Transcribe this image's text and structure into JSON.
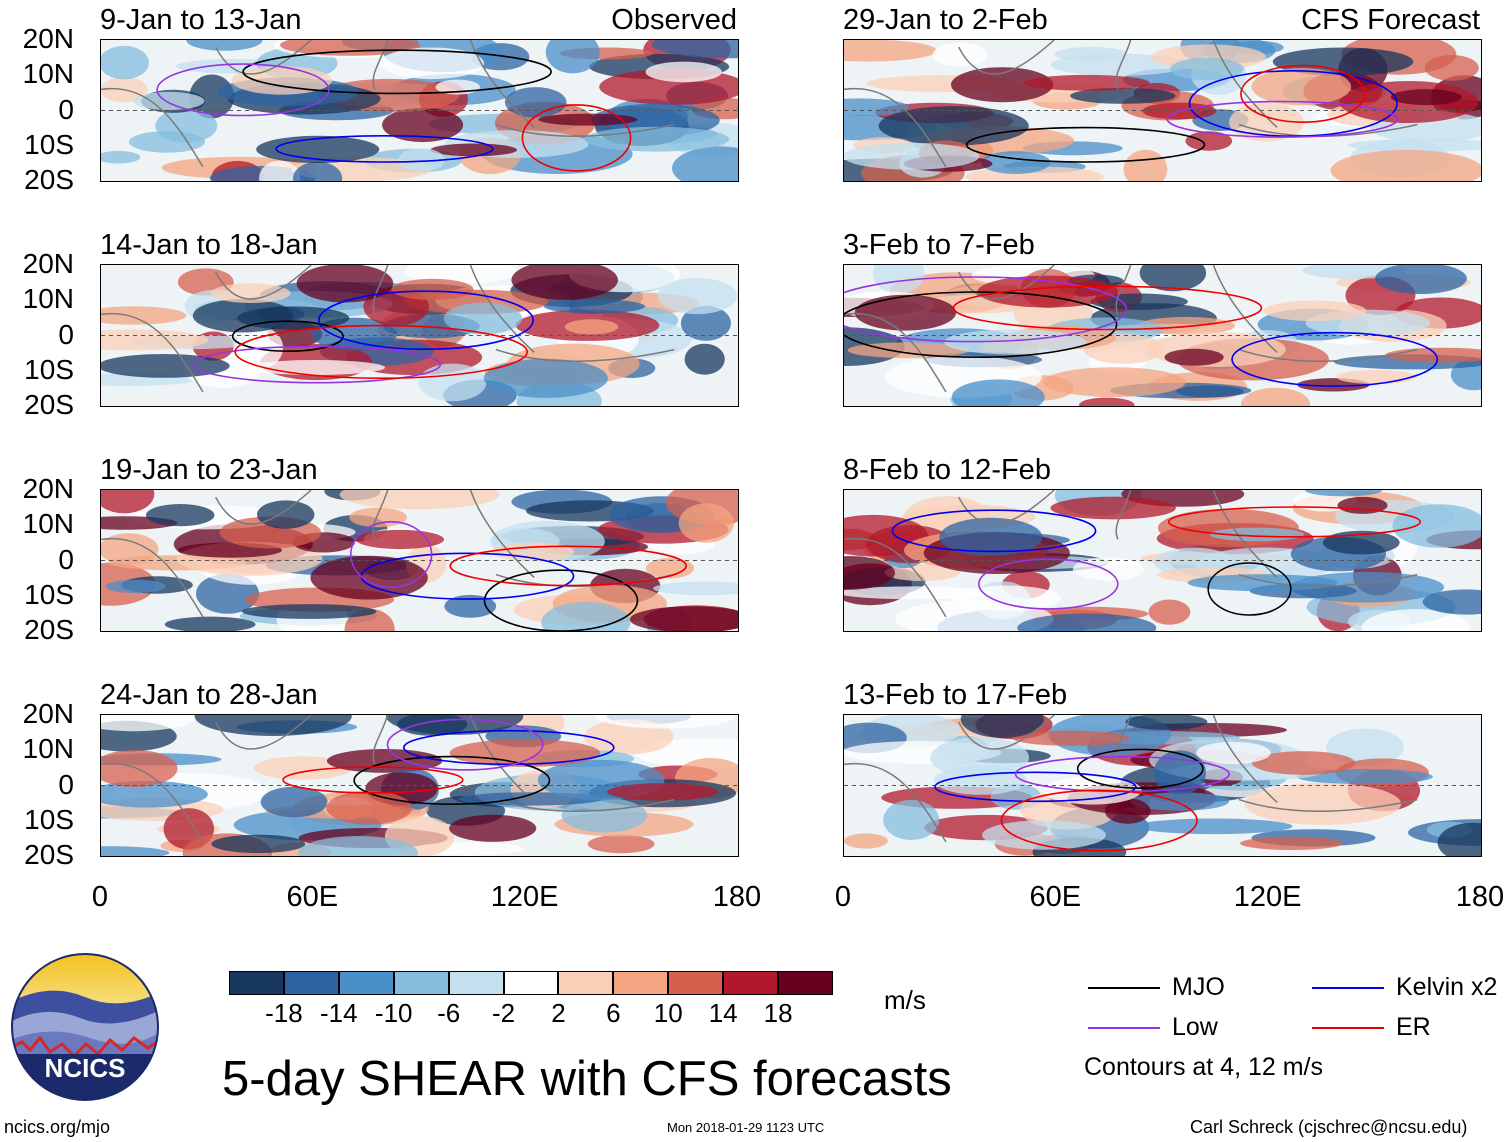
{
  "panels": [
    {
      "title": "9-Jan to 13-Jan",
      "tag": "Observed",
      "side": "left",
      "row": 0
    },
    {
      "title": "14-Jan to 18-Jan",
      "tag": "",
      "side": "left",
      "row": 1
    },
    {
      "title": "19-Jan to 23-Jan",
      "tag": "",
      "side": "left",
      "row": 2
    },
    {
      "title": "24-Jan to 28-Jan",
      "tag": "",
      "side": "left",
      "row": 3
    },
    {
      "title": "29-Jan to 2-Feb",
      "tag": "CFS Forecast",
      "side": "right",
      "row": 0
    },
    {
      "title": "3-Feb to 7-Feb",
      "tag": "",
      "side": "right",
      "row": 1
    },
    {
      "title": "8-Feb to 12-Feb",
      "tag": "",
      "side": "right",
      "row": 2
    },
    {
      "title": "13-Feb to 17-Feb",
      "tag": "",
      "side": "right",
      "row": 3
    }
  ],
  "axes": {
    "y_ticks": [
      "20N",
      "10N",
      "0",
      "10S",
      "20S"
    ],
    "x_ticks": [
      "0",
      "60E",
      "120E",
      "180"
    ]
  },
  "colorbar": {
    "labels": [
      "-18",
      "-14",
      "-10",
      "-6",
      "-2",
      "2",
      "6",
      "10",
      "14",
      "18"
    ],
    "colors": [
      "#17375e",
      "#2c64a3",
      "#4a8fc8",
      "#86bddd",
      "#c4e0ef",
      "#ffffff",
      "#fbd0b8",
      "#f4a582",
      "#d6604d",
      "#b2182b",
      "#67001f"
    ],
    "units": "m/s"
  },
  "title": "5-day SHEAR with CFS forecasts",
  "legend": {
    "items": [
      {
        "label": "MJO",
        "color": "#000000"
      },
      {
        "label": "Kelvin x2",
        "color": "#0000ee"
      },
      {
        "label": "Low",
        "color": "#9932e0"
      },
      {
        "label": "ER",
        "color": "#ee0000"
      }
    ],
    "note": "Contours at 4, 12 m/s"
  },
  "logo": {
    "text": "NCICS"
  },
  "footer": {
    "url": "ncics.org/mjo",
    "timestamp": "Mon 2018-01-29 1123 UTC",
    "credit": "Carl Schreck (cjschrec@ncsu.edu)"
  },
  "chart_data": {
    "type": "heatmap",
    "title": "5-day SHEAR with CFS forecasts",
    "variable": "wind shear anomaly",
    "units": "m/s",
    "domain": {
      "lon_range": [
        0,
        180
      ],
      "lat_range": [
        -20,
        20
      ]
    },
    "xlabel": "",
    "ylabel": "",
    "color_levels": [
      -18,
      -14,
      -10,
      -6,
      -2,
      2,
      6,
      10,
      14,
      18
    ],
    "contour_levels": [
      4,
      12
    ],
    "series": [
      {
        "name": "MJO",
        "color": "#000000"
      },
      {
        "name": "Kelvin x2",
        "color": "#0000ee"
      },
      {
        "name": "Low",
        "color": "#9932e0"
      },
      {
        "name": "ER",
        "color": "#ee0000"
      }
    ],
    "panels": [
      {
        "period": "9-Jan to 13-Jan",
        "source": "Observed"
      },
      {
        "period": "14-Jan to 18-Jan",
        "source": "Observed"
      },
      {
        "period": "19-Jan to 23-Jan",
        "source": "Observed"
      },
      {
        "period": "24-Jan to 28-Jan",
        "source": "Observed"
      },
      {
        "period": "29-Jan to 2-Feb",
        "source": "CFS Forecast"
      },
      {
        "period": "3-Feb to 7-Feb",
        "source": "CFS Forecast"
      },
      {
        "period": "8-Feb to 12-Feb",
        "source": "CFS Forecast"
      },
      {
        "period": "13-Feb to 17-Feb",
        "source": "CFS Forecast"
      }
    ]
  }
}
